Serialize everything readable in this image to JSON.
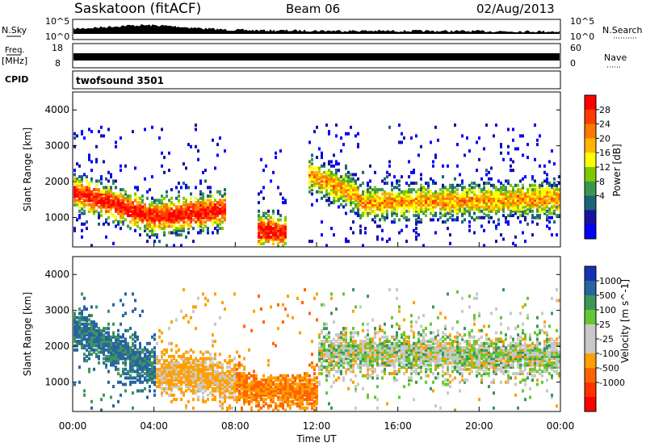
{
  "header": {
    "station": "Saskatoon (fitACF)",
    "beam": "Beam 06",
    "date": "02/Aug/2013"
  },
  "strip_panels": {
    "nsky_label": "N.Sky",
    "nsky_ticks": [
      "10^5",
      "10^0"
    ],
    "nsearch_label": "N.Search",
    "nsearch_ticks": [
      "10^5",
      "10^0"
    ],
    "freq_label": "Freq.",
    "freq_unit": "[MHz]",
    "freq_ticks": [
      "18",
      "8"
    ],
    "nave_label": "Nave",
    "nave_ticks": [
      "60",
      "0"
    ],
    "cpid_label": "CPID",
    "cpid_value": "twofsound 3501"
  },
  "chart_data": [
    {
      "type": "heatmap",
      "parameter": "Power",
      "ylabel": "Slant Range [km]",
      "yticks": [
        "4000",
        "3000",
        "2000",
        "1000"
      ],
      "ylim": [
        180,
        4500
      ],
      "xlim": [
        "00:00",
        "24:00"
      ],
      "colorbar": {
        "label": "Power [dB]",
        "ticks": [
          "28",
          "24",
          "20",
          "16",
          "12",
          "8",
          "4"
        ],
        "colors": [
          "#ff0000",
          "#ff3c00",
          "#ff7800",
          "#ffb400",
          "#ffff00",
          "#7ec800",
          "#3c9650",
          "#1e6478",
          "#1414a0",
          "#0000ff"
        ]
      },
      "observed_bands": [
        {
          "time_start": "00:00",
          "time_end": "04:00",
          "range_start": 1700,
          "range_end": 1000,
          "peak_db": 28
        },
        {
          "time_start": "04:00",
          "time_end": "07:30",
          "range_start": 1000,
          "range_end": 1200,
          "peak_db": 28
        },
        {
          "time_start": "09:00",
          "time_end": "10:30",
          "range_start": 600,
          "range_end": 600,
          "peak_db": 28
        },
        {
          "time_start": "11:30",
          "time_end": "14:00",
          "range_start": 2200,
          "range_end": 1600,
          "peak_db": 20
        },
        {
          "time_start": "14:00",
          "time_end": "24:00",
          "range_start": 1400,
          "range_end": 1500,
          "peak_db": 20
        }
      ]
    },
    {
      "type": "heatmap",
      "parameter": "Velocity",
      "ylabel": "Slant Range [km]",
      "yticks": [
        "4000",
        "3000",
        "2000",
        "1000"
      ],
      "ylim": [
        180,
        4500
      ],
      "xlim": [
        "00:00",
        "24:00"
      ],
      "xlabel": "Time UT",
      "xticks": [
        "00:00",
        "04:00",
        "08:00",
        "12:00",
        "16:00",
        "20:00",
        "00:00"
      ],
      "colorbar": {
        "label": "Velocity [m s^-1]",
        "ticks": [
          "1000",
          "500",
          "100",
          "25",
          "-25",
          "-100",
          "-500",
          "-1000"
        ],
        "colors": [
          "#1432b4",
          "#2864a0",
          "#3c965a",
          "#64c832",
          "#c8c8c8",
          "#c8c8c8",
          "#ffa000",
          "#ff6400",
          "#ff3200",
          "#ff0000"
        ]
      },
      "observed_bands": [
        {
          "time_start": "00:00",
          "time_end": "04:00",
          "range_start": 2500,
          "range_end": 1300,
          "velocity": 300
        },
        {
          "time_start": "04:00",
          "time_end": "08:00",
          "range_start": 1300,
          "range_end": 1000,
          "velocity": -150
        },
        {
          "time_start": "08:00",
          "time_end": "12:00",
          "range_start": 900,
          "range_end": 700,
          "velocity": -300
        },
        {
          "time_start": "12:00",
          "time_end": "24:00",
          "range_start": 1800,
          "range_end": 1700,
          "velocity": 0
        }
      ]
    }
  ]
}
